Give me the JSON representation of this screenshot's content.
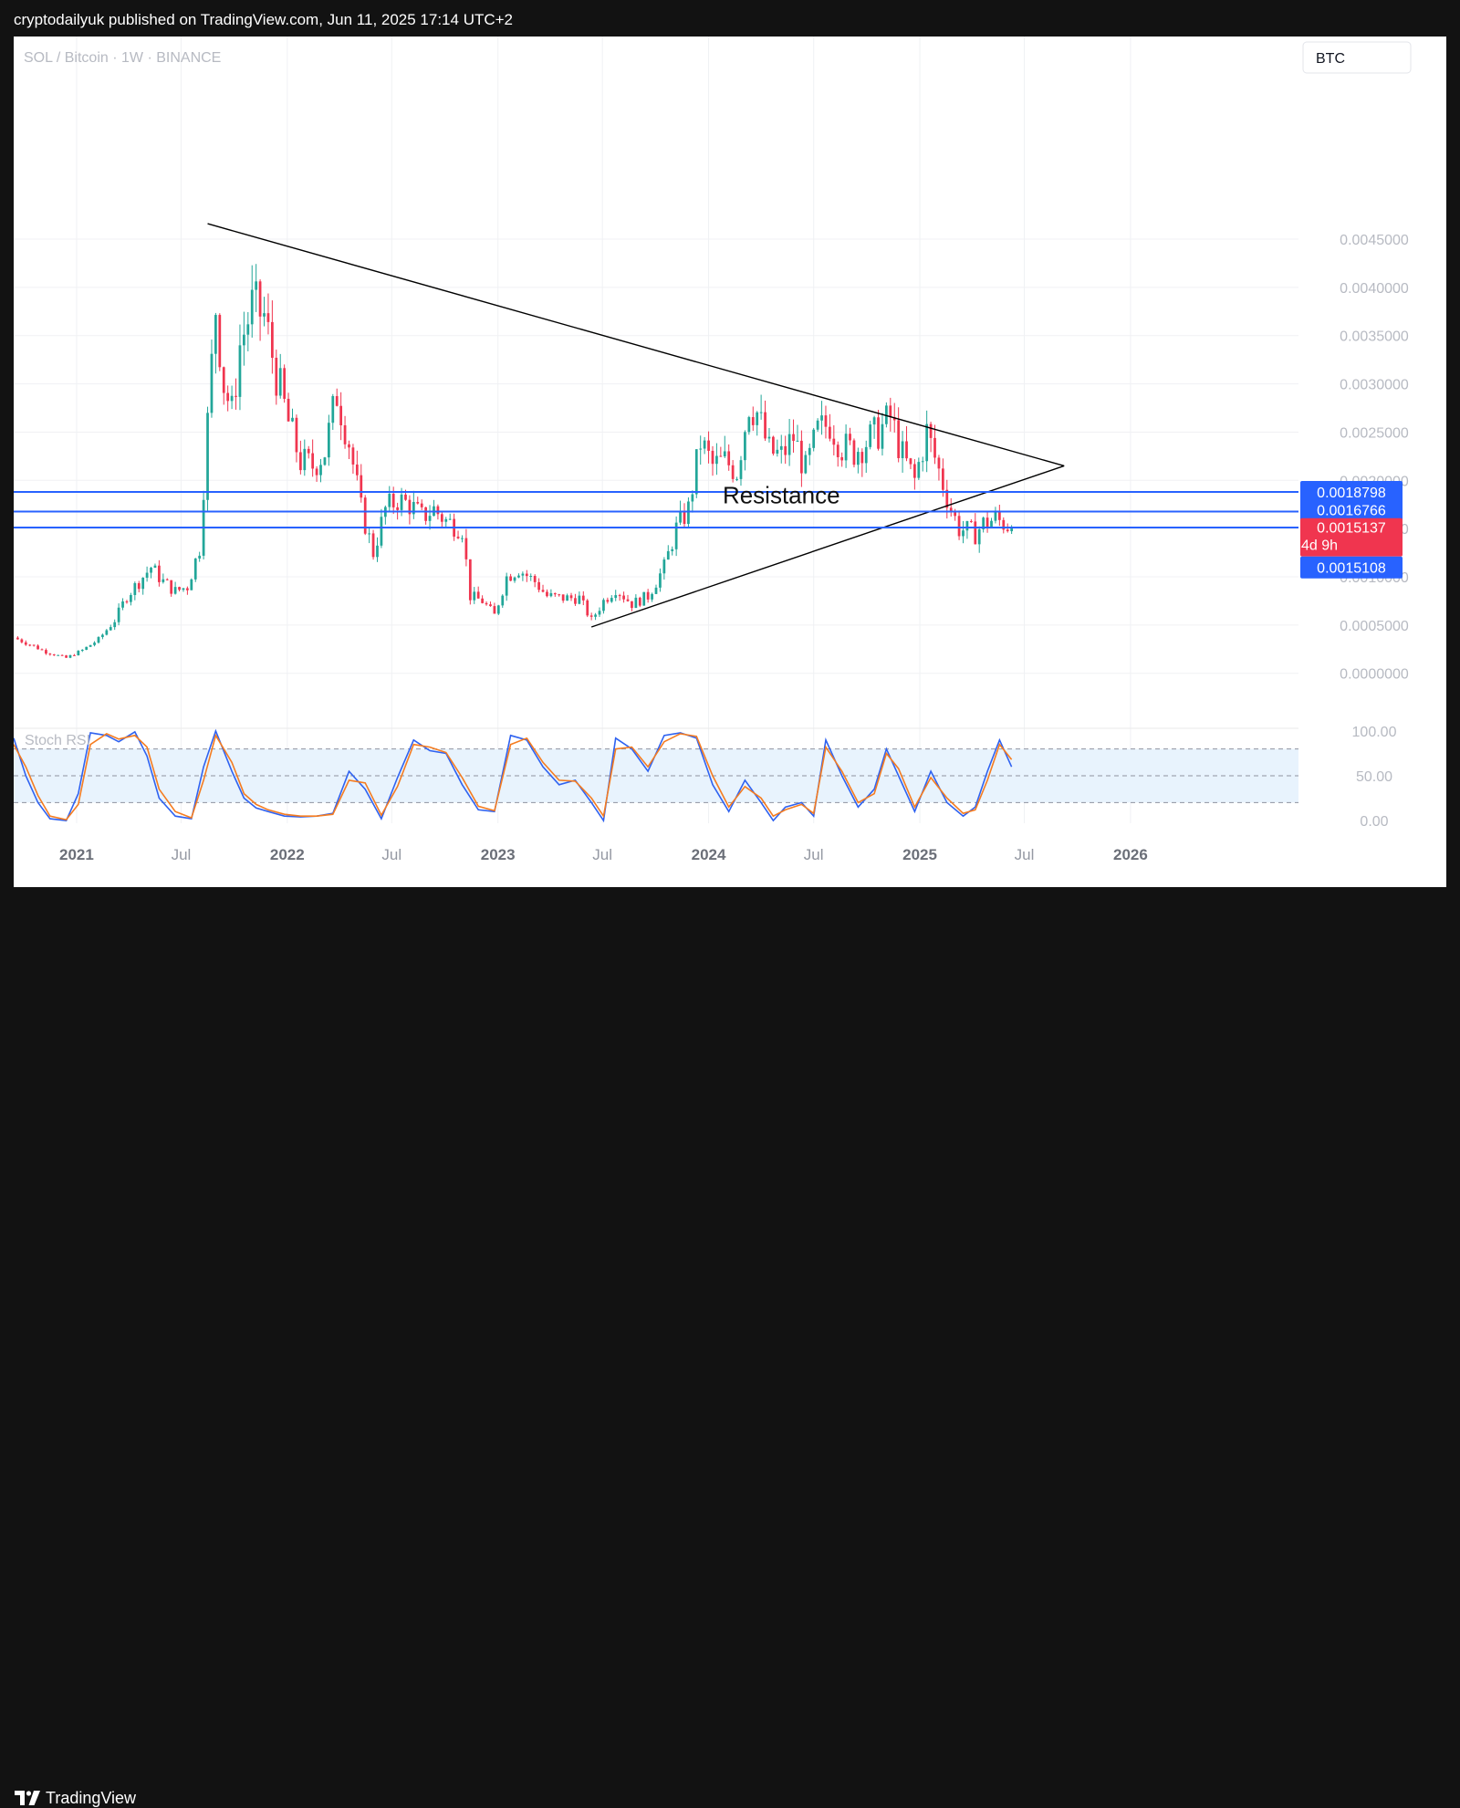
{
  "header": {
    "publisher_line": "cryptodailyuk published on TradingView.com, Jun 11, 2025 17:14 UTC+2"
  },
  "footer": {
    "brand": "TradingView"
  },
  "colors": {
    "up": "#22a699",
    "down": "#f0354f",
    "resistance_line": "#2862ff",
    "trendline": "#000000",
    "stoch_k": "#2f62f0",
    "stoch_d": "#f57c20",
    "stoch_band": "#e8f3fd"
  },
  "chart_data": [
    {
      "type": "candlestick",
      "symbol_label": "SOL / Bitcoin · 1W · BINANCE",
      "currency_label": "BTC",
      "x_ticks": [
        "2021",
        "Jul",
        "2022",
        "Jul",
        "2023",
        "Jul",
        "2024",
        "Jul",
        "2025",
        "Jul",
        "2026"
      ],
      "x_tick_dates": [
        "2021-01-01",
        "2021-07-01",
        "2022-01-01",
        "2022-07-01",
        "2023-01-01",
        "2023-07-01",
        "2024-01-01",
        "2024-07-01",
        "2025-01-01",
        "2025-07-01",
        "2026-01-01"
      ],
      "x_range": [
        "2020-09-14",
        "2026-10-19"
      ],
      "y_ticks": [
        "0.0000000",
        "0.0005000",
        "0.0010000",
        "0.0015000",
        "0.0020000",
        "0.0025000",
        "0.0030000",
        "0.0035000",
        "0.0040000",
        "0.0045000"
      ],
      "ylim": [
        -0.00057,
        0.0066
      ],
      "price_path": [
        [
          "2020-09-14",
          0.00037
        ],
        [
          "2020-10-12",
          0.0003
        ],
        [
          "2020-11-09",
          0.00022
        ],
        [
          "2020-12-14",
          0.00016
        ],
        [
          "2021-01-11",
          0.00024
        ],
        [
          "2021-02-08",
          0.00035
        ],
        [
          "2021-03-08",
          0.00055
        ],
        [
          "2021-03-29",
          0.0008
        ],
        [
          "2021-04-19",
          0.00095
        ],
        [
          "2021-05-10",
          0.0011
        ],
        [
          "2021-05-31",
          0.00095
        ],
        [
          "2021-06-21",
          0.00085
        ],
        [
          "2021-07-12",
          0.0009
        ],
        [
          "2021-08-02",
          0.0013
        ],
        [
          "2021-08-16",
          0.0026
        ],
        [
          "2021-08-30",
          0.0038
        ],
        [
          "2021-09-13",
          0.003
        ],
        [
          "2021-09-27",
          0.0027
        ],
        [
          "2021-10-11",
          0.0034
        ],
        [
          "2021-11-01",
          0.0038
        ],
        [
          "2021-11-22",
          0.0037
        ],
        [
          "2021-12-13",
          0.0031
        ],
        [
          "2022-01-03",
          0.0026
        ],
        [
          "2022-01-24",
          0.0022
        ],
        [
          "2022-02-14",
          0.00215
        ],
        [
          "2022-03-07",
          0.0023
        ],
        [
          "2022-03-28",
          0.0029
        ],
        [
          "2022-04-18",
          0.0024
        ],
        [
          "2022-05-09",
          0.0017
        ],
        [
          "2022-05-30",
          0.00125
        ],
        [
          "2022-06-20",
          0.0017
        ],
        [
          "2022-07-11",
          0.0018
        ],
        [
          "2022-08-01",
          0.00175
        ],
        [
          "2022-08-22",
          0.00162
        ],
        [
          "2022-09-12",
          0.0017
        ],
        [
          "2022-10-03",
          0.00158
        ],
        [
          "2022-10-31",
          0.0015
        ],
        [
          "2022-11-14",
          0.0008
        ],
        [
          "2022-12-05",
          0.00075
        ],
        [
          "2022-12-26",
          0.0006
        ],
        [
          "2023-01-16",
          0.001
        ],
        [
          "2023-02-06",
          0.00108
        ],
        [
          "2023-03-06",
          0.00095
        ],
        [
          "2023-03-27",
          0.0008
        ],
        [
          "2023-04-24",
          0.00078
        ],
        [
          "2023-05-22",
          0.00078
        ],
        [
          "2023-06-12",
          0.00055
        ],
        [
          "2023-07-03",
          0.00075
        ],
        [
          "2023-07-24",
          0.00088
        ],
        [
          "2023-08-21",
          0.00072
        ],
        [
          "2023-09-18",
          0.0008
        ],
        [
          "2023-10-16",
          0.0011
        ],
        [
          "2023-11-06",
          0.0015
        ],
        [
          "2023-11-27",
          0.0017
        ],
        [
          "2023-12-18",
          0.0024
        ],
        [
          "2024-01-08",
          0.00215
        ],
        [
          "2024-01-29",
          0.0022
        ],
        [
          "2024-02-19",
          0.0021
        ],
        [
          "2024-03-11",
          0.0028
        ],
        [
          "2024-03-25",
          0.0027
        ],
        [
          "2024-04-15",
          0.0023
        ],
        [
          "2024-05-06",
          0.00225
        ],
        [
          "2024-05-27",
          0.00245
        ],
        [
          "2024-06-17",
          0.0021
        ],
        [
          "2024-07-08",
          0.0025
        ],
        [
          "2024-07-29",
          0.0026
        ],
        [
          "2024-08-19",
          0.00235
        ],
        [
          "2024-09-09",
          0.0023
        ],
        [
          "2024-09-30",
          0.0024
        ],
        [
          "2024-10-21",
          0.0025
        ],
        [
          "2024-11-11",
          0.00265
        ],
        [
          "2024-12-02",
          0.00225
        ],
        [
          "2024-12-23",
          0.002
        ],
        [
          "2025-01-13",
          0.0025
        ],
        [
          "2025-02-03",
          0.0021
        ],
        [
          "2025-02-24",
          0.0017
        ],
        [
          "2025-03-10",
          0.0015
        ],
        [
          "2025-04-07",
          0.00145
        ],
        [
          "2025-04-21",
          0.00155
        ],
        [
          "2025-05-12",
          0.0016
        ],
        [
          "2025-06-09",
          0.00151
        ]
      ],
      "horizontal_levels": [
        {
          "value": 0.0018798,
          "label": "0.0018798"
        },
        {
          "value": 0.0016766,
          "label": "0.0016766"
        },
        {
          "value": 0.0015108,
          "label": "0.0015108"
        }
      ],
      "last_price": {
        "value": 0.0015137,
        "label": "0.0015137",
        "countdown": "4d 9h"
      },
      "annotation": {
        "text": "Resistance",
        "date": "2024-05-06",
        "value": 0.00176
      },
      "trendlines": [
        {
          "from": [
            "2021-08-16",
            0.00466
          ],
          "to": [
            "2025-09-08",
            0.00215
          ]
        },
        {
          "from": [
            "2023-06-12",
            0.00048
          ],
          "to": [
            "2025-09-08",
            0.00215
          ]
        }
      ]
    },
    {
      "type": "line",
      "title": "Stoch RSI",
      "y_ticks": [
        "0.00",
        "50.00",
        "100.00"
      ],
      "ylim": [
        -3,
        103
      ],
      "bands": [
        20,
        50,
        80
      ],
      "series": [
        {
          "color_key": "stoch_k",
          "points": [
            [
              "2020-09-14",
              92
            ],
            [
              "2020-10-05",
              50
            ],
            [
              "2020-10-26",
              20
            ],
            [
              "2020-11-16",
              2
            ],
            [
              "2020-12-14",
              0
            ],
            [
              "2021-01-04",
              30
            ],
            [
              "2021-01-25",
              98
            ],
            [
              "2021-02-22",
              95
            ],
            [
              "2021-03-15",
              88
            ],
            [
              "2021-04-12",
              99
            ],
            [
              "2021-05-03",
              72
            ],
            [
              "2021-05-24",
              25
            ],
            [
              "2021-06-21",
              5
            ],
            [
              "2021-07-19",
              2
            ],
            [
              "2021-08-09",
              60
            ],
            [
              "2021-08-30",
              100
            ],
            [
              "2021-09-27",
              55
            ],
            [
              "2021-10-18",
              25
            ],
            [
              "2021-11-08",
              14
            ],
            [
              "2021-11-29",
              10
            ],
            [
              "2021-12-27",
              5
            ],
            [
              "2022-01-24",
              4
            ],
            [
              "2022-02-21",
              5
            ],
            [
              "2022-03-21",
              8
            ],
            [
              "2022-04-18",
              55
            ],
            [
              "2022-05-16",
              35
            ],
            [
              "2022-06-13",
              2
            ],
            [
              "2022-07-11",
              48
            ],
            [
              "2022-08-08",
              90
            ],
            [
              "2022-09-05",
              78
            ],
            [
              "2022-10-03",
              75
            ],
            [
              "2022-10-31",
              40
            ],
            [
              "2022-11-28",
              12
            ],
            [
              "2022-12-26",
              10
            ],
            [
              "2023-01-23",
              95
            ],
            [
              "2023-02-20",
              90
            ],
            [
              "2023-03-20",
              60
            ],
            [
              "2023-04-17",
              40
            ],
            [
              "2023-05-15",
              45
            ],
            [
              "2023-06-12",
              20
            ],
            [
              "2023-07-03",
              0
            ],
            [
              "2023-07-24",
              92
            ],
            [
              "2023-08-21",
              80
            ],
            [
              "2023-09-18",
              55
            ],
            [
              "2023-10-16",
              95
            ],
            [
              "2023-11-13",
              98
            ],
            [
              "2023-12-11",
              92
            ],
            [
              "2024-01-08",
              40
            ],
            [
              "2024-02-05",
              10
            ],
            [
              "2024-03-04",
              45
            ],
            [
              "2024-04-01",
              20
            ],
            [
              "2024-04-22",
              0
            ],
            [
              "2024-05-13",
              15
            ],
            [
              "2024-06-10",
              20
            ],
            [
              "2024-07-01",
              5
            ],
            [
              "2024-07-22",
              90
            ],
            [
              "2024-08-19",
              50
            ],
            [
              "2024-09-16",
              15
            ],
            [
              "2024-10-14",
              35
            ],
            [
              "2024-11-04",
              80
            ],
            [
              "2024-11-25",
              50
            ],
            [
              "2024-12-23",
              10
            ],
            [
              "2025-01-20",
              55
            ],
            [
              "2025-02-17",
              20
            ],
            [
              "2025-03-17",
              5
            ],
            [
              "2025-04-07",
              15
            ],
            [
              "2025-04-28",
              55
            ],
            [
              "2025-05-19",
              90
            ],
            [
              "2025-06-09",
              60
            ]
          ]
        },
        {
          "color_key": "stoch_d",
          "points": [
            [
              "2020-09-14",
              85
            ],
            [
              "2020-10-05",
              60
            ],
            [
              "2020-10-26",
              28
            ],
            [
              "2020-11-16",
              5
            ],
            [
              "2020-12-14",
              1
            ],
            [
              "2021-01-04",
              18
            ],
            [
              "2021-01-25",
              85
            ],
            [
              "2021-02-22",
              97
            ],
            [
              "2021-03-15",
              91
            ],
            [
              "2021-04-12",
              95
            ],
            [
              "2021-05-03",
              82
            ],
            [
              "2021-05-24",
              35
            ],
            [
              "2021-06-21",
              10
            ],
            [
              "2021-07-19",
              3
            ],
            [
              "2021-08-09",
              45
            ],
            [
              "2021-08-30",
              95
            ],
            [
              "2021-09-27",
              65
            ],
            [
              "2021-10-18",
              30
            ],
            [
              "2021-11-08",
              18
            ],
            [
              "2021-11-29",
              12
            ],
            [
              "2021-12-27",
              7
            ],
            [
              "2022-01-24",
              5
            ],
            [
              "2022-02-21",
              5
            ],
            [
              "2022-03-21",
              7
            ],
            [
              "2022-04-18",
              45
            ],
            [
              "2022-05-16",
              42
            ],
            [
              "2022-06-13",
              6
            ],
            [
              "2022-07-11",
              38
            ],
            [
              "2022-08-08",
              85
            ],
            [
              "2022-09-05",
              82
            ],
            [
              "2022-10-03",
              76
            ],
            [
              "2022-10-31",
              48
            ],
            [
              "2022-11-28",
              16
            ],
            [
              "2022-12-26",
              11
            ],
            [
              "2023-01-23",
              85
            ],
            [
              "2023-02-20",
              92
            ],
            [
              "2023-03-20",
              65
            ],
            [
              "2023-04-17",
              45
            ],
            [
              "2023-05-15",
              44
            ],
            [
              "2023-06-12",
              25
            ],
            [
              "2023-07-03",
              5
            ],
            [
              "2023-07-24",
              80
            ],
            [
              "2023-08-21",
              82
            ],
            [
              "2023-09-18",
              60
            ],
            [
              "2023-10-16",
              88
            ],
            [
              "2023-11-13",
              97
            ],
            [
              "2023-12-11",
              94
            ],
            [
              "2024-01-08",
              50
            ],
            [
              "2024-02-05",
              15
            ],
            [
              "2024-03-04",
              38
            ],
            [
              "2024-04-01",
              25
            ],
            [
              "2024-04-22",
              5
            ],
            [
              "2024-05-13",
              12
            ],
            [
              "2024-06-10",
              18
            ],
            [
              "2024-07-01",
              8
            ],
            [
              "2024-07-22",
              82
            ],
            [
              "2024-08-19",
              55
            ],
            [
              "2024-09-16",
              20
            ],
            [
              "2024-10-14",
              30
            ],
            [
              "2024-11-04",
              75
            ],
            [
              "2024-11-25",
              58
            ],
            [
              "2024-12-23",
              15
            ],
            [
              "2025-01-20",
              48
            ],
            [
              "2025-02-17",
              25
            ],
            [
              "2025-03-17",
              8
            ],
            [
              "2025-04-07",
              12
            ],
            [
              "2025-04-28",
              45
            ],
            [
              "2025-05-19",
              85
            ],
            [
              "2025-06-09",
              68
            ]
          ]
        }
      ]
    }
  ]
}
